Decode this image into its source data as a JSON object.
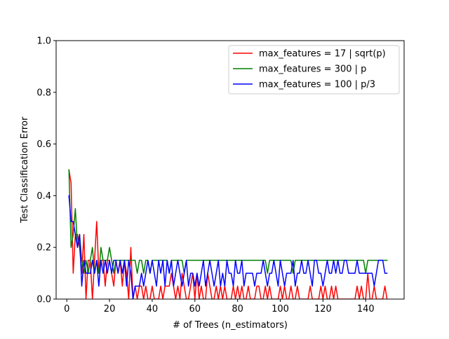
{
  "chart_data": {
    "type": "line",
    "title": "",
    "xlabel": "# of Trees (n_estimators)",
    "ylabel": "Test Classification Error",
    "xlim": [
      -5,
      158
    ],
    "ylim": [
      0,
      1
    ],
    "xticks": [
      0,
      20,
      40,
      60,
      80,
      100,
      120,
      140
    ],
    "yticks": [
      0.0,
      0.2,
      0.4,
      0.6,
      0.8,
      1.0
    ],
    "xtick_labels": [
      "0",
      "20",
      "40",
      "60",
      "80",
      "100",
      "120",
      "140"
    ],
    "ytick_labels": [
      "0.0",
      "0.2",
      "0.4",
      "0.6",
      "0.8",
      "1.0"
    ],
    "grid": false,
    "legend_position": "top-right",
    "x": [
      1,
      2,
      3,
      4,
      5,
      6,
      7,
      8,
      9,
      10,
      11,
      12,
      13,
      14,
      15,
      16,
      17,
      18,
      19,
      20,
      21,
      22,
      23,
      24,
      25,
      26,
      27,
      28,
      29,
      30,
      31,
      32,
      33,
      34,
      35,
      36,
      37,
      38,
      39,
      40,
      41,
      42,
      43,
      44,
      45,
      46,
      47,
      48,
      49,
      50,
      51,
      52,
      53,
      54,
      55,
      56,
      57,
      58,
      59,
      60,
      61,
      62,
      63,
      64,
      65,
      66,
      67,
      68,
      69,
      70,
      71,
      72,
      73,
      74,
      75,
      76,
      77,
      78,
      79,
      80,
      81,
      82,
      83,
      84,
      85,
      86,
      87,
      88,
      89,
      90,
      91,
      92,
      93,
      94,
      95,
      96,
      97,
      98,
      99,
      100,
      101,
      102,
      103,
      104,
      105,
      106,
      107,
      108,
      109,
      110,
      111,
      112,
      113,
      114,
      115,
      116,
      117,
      118,
      119,
      120,
      121,
      122,
      123,
      124,
      125,
      126,
      127,
      128,
      129,
      130,
      131,
      132,
      133,
      134,
      135,
      136,
      137,
      138,
      139,
      140,
      141,
      142,
      143,
      144,
      145,
      146,
      147,
      148,
      149,
      150
    ],
    "series": [
      {
        "name": "max_features = 17 | sqrt(p)",
        "color": "#ff0000",
        "values": [
          0.5,
          0.45,
          0.1,
          0.25,
          0.25,
          0.2,
          0.1,
          0.25,
          0.0,
          0.15,
          0.15,
          0.0,
          0.15,
          0.3,
          0.1,
          0.15,
          0.15,
          0.05,
          0.15,
          0.15,
          0.1,
          0.05,
          0.15,
          0.1,
          0.15,
          0.05,
          0.15,
          0.1,
          0.0,
          0.2,
          0.0,
          0.05,
          0.0,
          0.05,
          0.05,
          0.0,
          0.05,
          0.0,
          0.0,
          0.05,
          0.0,
          0.0,
          0.0,
          0.05,
          0.0,
          0.05,
          0.05,
          0.05,
          0.1,
          0.05,
          0.0,
          0.05,
          0.0,
          0.1,
          0.05,
          0.0,
          0.0,
          0.05,
          0.1,
          0.0,
          0.1,
          0.0,
          0.05,
          0.0,
          0.0,
          0.1,
          0.05,
          0.0,
          0.0,
          0.05,
          0.0,
          0.05,
          0.0,
          0.05,
          0.0,
          0.0,
          0.0,
          0.05,
          0.0,
          0.05,
          0.0,
          0.05,
          0.0,
          0.0,
          0.05,
          0.0,
          0.0,
          0.0,
          0.05,
          0.05,
          0.0,
          0.0,
          0.05,
          0.0,
          0.05,
          0.0,
          0.0,
          0.0,
          0.0,
          0.05,
          0.0,
          0.05,
          0.0,
          0.0,
          0.05,
          0.0,
          0.0,
          0.05,
          0.0,
          0.0,
          0.0,
          0.0,
          0.0,
          0.05,
          0.0,
          0.0,
          0.0,
          0.0,
          0.05,
          0.0,
          0.05,
          0.0,
          0.0,
          0.05,
          0.0,
          0.05,
          0.0,
          0.0,
          0.0,
          0.0,
          0.0,
          0.0,
          0.0,
          0.0,
          0.0,
          0.05,
          0.0,
          0.05,
          0.0,
          0.0,
          0.1,
          0.0,
          0.0,
          0.05,
          0.0,
          0.0,
          0.0,
          0.0,
          0.05,
          0.0
        ]
      },
      {
        "name": "max_features = 300 | p",
        "color": "#008000",
        "values": [
          0.5,
          0.2,
          0.25,
          0.35,
          0.2,
          0.25,
          0.15,
          0.1,
          0.15,
          0.1,
          0.15,
          0.2,
          0.1,
          0.15,
          0.1,
          0.2,
          0.15,
          0.15,
          0.15,
          0.2,
          0.15,
          0.1,
          0.15,
          0.15,
          0.15,
          0.15,
          0.15,
          0.15,
          0.15,
          0.15,
          0.15,
          0.15,
          0.1,
          0.15,
          0.15,
          0.1,
          0.15,
          0.15,
          0.1,
          0.15,
          0.15,
          0.15,
          0.15,
          0.15,
          0.15,
          0.15,
          0.15,
          0.1,
          0.15,
          0.15,
          0.15,
          0.15,
          0.15,
          0.15,
          0.1,
          0.15,
          0.15,
          0.15,
          0.15,
          0.15,
          0.15,
          0.15,
          0.15,
          0.15,
          0.15,
          0.15,
          0.15,
          0.15,
          0.15,
          0.15,
          0.15,
          0.15,
          0.15,
          0.15,
          0.15,
          0.15,
          0.15,
          0.15,
          0.15,
          0.15,
          0.15,
          0.15,
          0.15,
          0.15,
          0.15,
          0.15,
          0.15,
          0.15,
          0.15,
          0.15,
          0.15,
          0.15,
          0.15,
          0.1,
          0.15,
          0.15,
          0.15,
          0.15,
          0.15,
          0.15,
          0.15,
          0.15,
          0.15,
          0.15,
          0.15,
          0.1,
          0.15,
          0.15,
          0.15,
          0.15,
          0.15,
          0.15,
          0.15,
          0.15,
          0.15,
          0.15,
          0.15,
          0.15,
          0.15,
          0.15,
          0.15,
          0.15,
          0.15,
          0.15,
          0.15,
          0.15,
          0.15,
          0.15,
          0.15,
          0.15,
          0.15,
          0.15,
          0.15,
          0.15,
          0.15,
          0.15,
          0.15,
          0.15,
          0.15,
          0.1,
          0.15,
          0.15,
          0.15,
          0.15,
          0.15,
          0.15,
          0.15,
          0.15,
          0.15,
          0.15
        ]
      },
      {
        "name": "max_features = 100 | p/3",
        "color": "#0000ff",
        "values": [
          0.4,
          0.3,
          0.3,
          0.25,
          0.2,
          0.25,
          0.05,
          0.15,
          0.1,
          0.1,
          0.1,
          0.15,
          0.1,
          0.15,
          0.05,
          0.15,
          0.1,
          0.15,
          0.1,
          0.15,
          0.1,
          0.15,
          0.15,
          0.1,
          0.15,
          0.1,
          0.15,
          0.05,
          0.15,
          0.1,
          0.0,
          0.05,
          0.05,
          0.05,
          0.1,
          0.05,
          0.1,
          0.15,
          0.1,
          0.15,
          0.1,
          0.05,
          0.15,
          0.1,
          0.15,
          0.05,
          0.15,
          0.1,
          0.15,
          0.05,
          0.1,
          0.15,
          0.1,
          0.05,
          0.1,
          0.15,
          0.05,
          0.1,
          0.1,
          0.05,
          0.1,
          0.05,
          0.1,
          0.15,
          0.05,
          0.1,
          0.15,
          0.1,
          0.05,
          0.1,
          0.15,
          0.05,
          0.1,
          0.05,
          0.15,
          0.1,
          0.1,
          0.05,
          0.15,
          0.1,
          0.1,
          0.15,
          0.05,
          0.1,
          0.1,
          0.1,
          0.1,
          0.05,
          0.1,
          0.1,
          0.1,
          0.15,
          0.1,
          0.05,
          0.1,
          0.1,
          0.15,
          0.1,
          0.05,
          0.15,
          0.1,
          0.05,
          0.1,
          0.1,
          0.1,
          0.15,
          0.05,
          0.1,
          0.1,
          0.15,
          0.1,
          0.1,
          0.15,
          0.1,
          0.05,
          0.15,
          0.15,
          0.1,
          0.1,
          0.05,
          0.1,
          0.15,
          0.1,
          0.1,
          0.15,
          0.1,
          0.15,
          0.1,
          0.1,
          0.15,
          0.15,
          0.1,
          0.1,
          0.1,
          0.1,
          0.15,
          0.1,
          0.1,
          0.1,
          0.1,
          0.1,
          0.1,
          0.1,
          0.05,
          0.1,
          0.15,
          0.15,
          0.15,
          0.1,
          0.1
        ]
      }
    ]
  }
}
